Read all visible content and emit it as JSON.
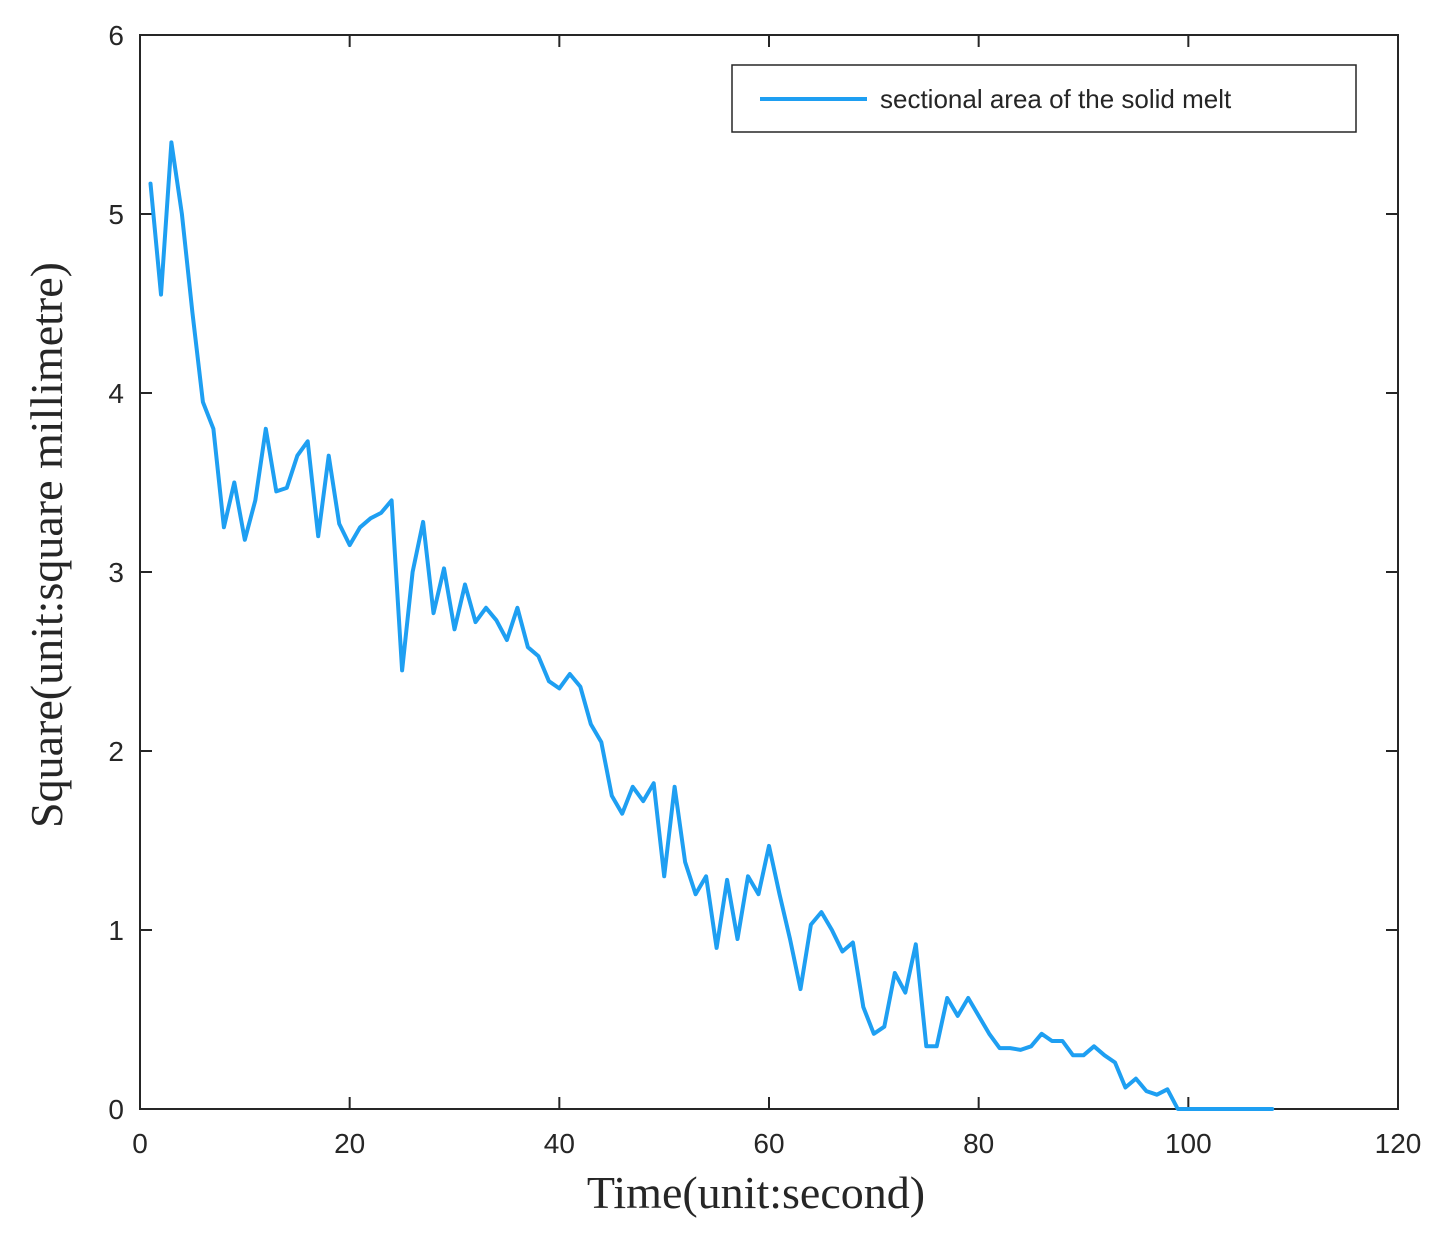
{
  "chart_data": {
    "type": "line",
    "xlabel": "Time(unit:second)",
    "ylabel": "Square(unit:square millimetre)",
    "xlim": [
      0,
      120
    ],
    "ylim": [
      0,
      6
    ],
    "xticks": [
      0,
      20,
      40,
      60,
      80,
      100,
      120
    ],
    "yticks": [
      0,
      1,
      2,
      3,
      4,
      5,
      6
    ],
    "grid": false,
    "legend_position": "top-right",
    "line_color": "#1e9ff2",
    "series": [
      {
        "name": "sectional area of the solid melt",
        "x": [
          1,
          2,
          3,
          4,
          5,
          6,
          7,
          8,
          9,
          10,
          11,
          12,
          13,
          14,
          15,
          16,
          17,
          18,
          19,
          20,
          21,
          22,
          23,
          24,
          25,
          26,
          27,
          28,
          29,
          30,
          31,
          32,
          33,
          34,
          35,
          36,
          37,
          38,
          39,
          40,
          41,
          42,
          43,
          44,
          45,
          46,
          47,
          48,
          49,
          50,
          51,
          52,
          53,
          54,
          55,
          56,
          57,
          58,
          59,
          60,
          61,
          62,
          63,
          64,
          65,
          66,
          67,
          68,
          69,
          70,
          71,
          72,
          73,
          74,
          75,
          76,
          77,
          78,
          79,
          80,
          81,
          82,
          83,
          84,
          85,
          86,
          87,
          88,
          89,
          90,
          91,
          92,
          93,
          94,
          95,
          96,
          97,
          98,
          99,
          100,
          101,
          102,
          103,
          104,
          105,
          106,
          107,
          108
        ],
        "values": [
          5.17,
          4.55,
          5.4,
          5.0,
          4.45,
          3.95,
          3.8,
          3.25,
          3.5,
          3.18,
          3.4,
          3.8,
          3.45,
          3.47,
          3.65,
          3.73,
          3.2,
          3.65,
          3.27,
          3.15,
          3.25,
          3.3,
          3.33,
          3.4,
          2.45,
          3.0,
          3.28,
          2.77,
          3.02,
          2.68,
          2.93,
          2.72,
          2.8,
          2.73,
          2.62,
          2.8,
          2.58,
          2.53,
          2.39,
          2.35,
          2.43,
          2.36,
          2.15,
          2.05,
          1.75,
          1.65,
          1.8,
          1.72,
          1.82,
          1.3,
          1.8,
          1.38,
          1.2,
          1.3,
          0.9,
          1.28,
          0.95,
          1.3,
          1.2,
          1.47,
          1.2,
          0.95,
          0.67,
          1.03,
          1.1,
          1.0,
          0.88,
          0.93,
          0.57,
          0.42,
          0.46,
          0.76,
          0.65,
          0.92,
          0.35,
          0.35,
          0.62,
          0.52,
          0.62,
          0.52,
          0.42,
          0.34,
          0.34,
          0.33,
          0.35,
          0.42,
          0.38,
          0.38,
          0.3,
          0.3,
          0.35,
          0.3,
          0.26,
          0.12,
          0.17,
          0.1,
          0.08,
          0.11,
          0.0,
          0.0,
          0.0,
          0.0,
          0.0,
          0.0,
          0.0,
          0.0,
          0.0,
          0.0
        ]
      }
    ]
  }
}
